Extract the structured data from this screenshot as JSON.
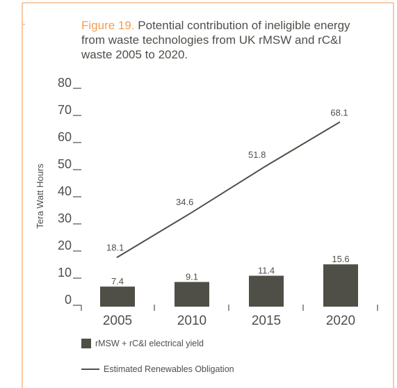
{
  "colors": {
    "frame": "#f5b98a",
    "series": "#4f4f47",
    "text": "#4e4e49",
    "figure_label": "#f29f52"
  },
  "chart_data": {
    "type": "bar",
    "title_label": "Figure 19.",
    "title": "Potential contribution of ineligible energy from waste technologies from UK rMSW and rC&I waste 2005 to 2020.",
    "ylabel": "Tera Watt Hours",
    "xlabel": "",
    "categories": [
      "2005",
      "2010",
      "2015",
      "2020"
    ],
    "ylim": [
      0,
      80
    ],
    "yticks": [
      0,
      10,
      20,
      30,
      40,
      50,
      60,
      70,
      80
    ],
    "grid": false,
    "legend_position": "bottom",
    "series": [
      {
        "name": "rMSW + rC&I electrical yield",
        "type": "bar",
        "values": [
          7.4,
          9.1,
          11.4,
          15.6
        ],
        "labels": [
          "7.4",
          "9.1",
          "11.4",
          "15.6"
        ]
      },
      {
        "name": "Estimated Renewables Obligation",
        "type": "line",
        "values": [
          18.1,
          34.6,
          51.8,
          68.1
        ],
        "labels": [
          "18.1",
          "34.6",
          "51.8",
          "68.1"
        ]
      }
    ]
  }
}
